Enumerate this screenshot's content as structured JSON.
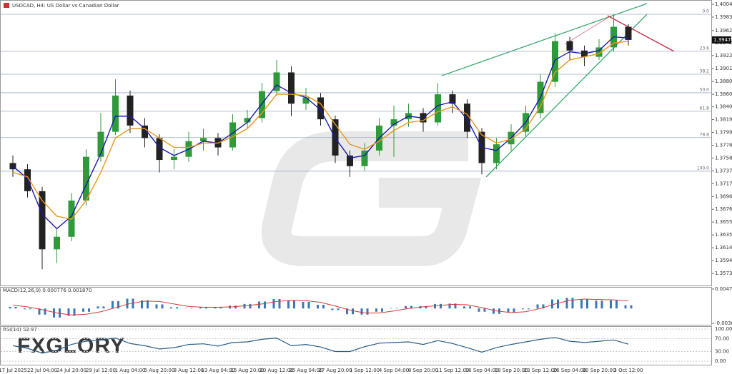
{
  "chart_data": {
    "type": "candlestick",
    "title": "USDCAD, H4:  US Dollar vs Canadian Dollar",
    "categories": [
      "17 Jul 2025",
      null,
      "22 Jul 04:00",
      null,
      "24 Jul 20:00",
      null,
      "29 Jul 12:00",
      null,
      "1 Aug 04:00",
      null,
      "5 Aug 20:00",
      null,
      "8 Aug 12:00",
      null,
      "13 Aug 04:00",
      null,
      "15 Aug 20:00",
      null,
      "20 Aug 12:00",
      null,
      "25 Aug 04:00",
      null,
      "27 Aug 20:00",
      null,
      "1 Sep 12:00",
      null,
      "4 Sep 04:00",
      null,
      "8 Sep 20:00",
      null,
      "11 Sep 12:00",
      null,
      "16 Sep 04:00",
      null,
      "18 Sep 20:00",
      null,
      "23 Sep 12:00",
      null,
      "26 Sep 04:00",
      null,
      "30 Sep 20:00",
      null,
      "3 Oct 12:00"
    ],
    "open": [
      1.375,
      1.374,
      1.3705,
      1.3612,
      1.3632,
      1.369,
      1.376,
      1.38,
      1.3858,
      1.381,
      1.379,
      1.3755,
      1.376,
      1.3785,
      1.379,
      1.3775,
      1.3815,
      1.3822,
      1.3865,
      1.3895,
      1.3845,
      1.3855,
      1.382,
      1.3762,
      1.3745,
      1.377,
      1.381,
      1.382,
      1.383,
      1.3815,
      1.386,
      1.3845,
      1.38,
      1.375,
      1.378,
      1.38,
      1.383,
      1.388,
      1.3945,
      1.393,
      1.392,
      1.3935,
      1.3968
    ],
    "high": [
      1.3762,
      1.3748,
      1.3712,
      1.3645,
      1.3702,
      1.3772,
      1.383,
      1.3884,
      1.3866,
      1.3822,
      1.3796,
      1.3772,
      1.38,
      1.3805,
      1.3798,
      1.3828,
      1.3835,
      1.3878,
      1.3915,
      1.3905,
      1.387,
      1.3862,
      1.3826,
      1.377,
      1.3782,
      1.3822,
      1.3842,
      1.3845,
      1.3838,
      1.3878,
      1.3866,
      1.3852,
      1.3806,
      1.379,
      1.3812,
      1.3842,
      1.3892,
      1.3958,
      1.3952,
      1.3938,
      1.3948,
      1.3988,
      1.3972
    ],
    "low": [
      1.3728,
      1.3695,
      1.358,
      1.359,
      1.3625,
      1.3682,
      1.3752,
      1.3795,
      1.3798,
      1.3775,
      1.3735,
      1.374,
      1.3752,
      1.377,
      1.3762,
      1.377,
      1.3805,
      1.3815,
      1.3858,
      1.3825,
      1.3835,
      1.381,
      1.375,
      1.3728,
      1.3738,
      1.3762,
      1.376,
      1.3808,
      1.38,
      1.381,
      1.383,
      1.379,
      1.3732,
      1.374,
      1.377,
      1.3792,
      1.3822,
      1.3872,
      1.3915,
      1.3905,
      1.3915,
      1.3928,
      1.3938
    ],
    "close": [
      1.374,
      1.3705,
      1.3612,
      1.3632,
      1.369,
      1.376,
      1.38,
      1.3858,
      1.381,
      1.379,
      1.3755,
      1.376,
      1.3785,
      1.379,
      1.3775,
      1.3815,
      1.3822,
      1.3865,
      1.3895,
      1.3845,
      1.3855,
      1.382,
      1.3762,
      1.3745,
      1.377,
      1.381,
      1.382,
      1.383,
      1.3815,
      1.386,
      1.3845,
      1.38,
      1.375,
      1.378,
      1.38,
      1.383,
      1.388,
      1.3945,
      1.393,
      1.392,
      1.3935,
      1.3968,
      1.3947
    ],
    "up_color": "#2f9a3a",
    "down_color": "#222222",
    "ylim": [
      1.35735,
      1.4004
    ],
    "yticks": [
      {
        "value": 1.4004,
        "label": "1.40040"
      },
      1.39835,
      {
        "value": 1.3962,
        "label": "1.39620"
      },
      1.39425,
      {
        "value": 1.3922,
        "label": "1.39220"
      },
      {
        "value": 1.3901,
        "label": "1.39010"
      },
      1.38805,
      {
        "value": 1.386,
        "label": "1.38600"
      },
      {
        "value": 1.384,
        "label": "1.38400"
      },
      1.38195,
      {
        "value": 1.3799,
        "label": "1.37990"
      },
      1.37785,
      {
        "value": 1.3758,
        "label": "1.37580"
      },
      1.37375,
      {
        "value": 1.3717,
        "label": "1.37170"
      },
      1.36965,
      {
        "value": 1.3676,
        "label": "1.36760"
      },
      1.36555,
      {
        "value": 1.3635,
        "label": "1.36350"
      },
      1.36145,
      {
        "value": 1.3594,
        "label": "1.35940"
      },
      1.35735
    ],
    "current_price": {
      "value": 1.3947,
      "label": "1.39470"
    },
    "ma": [
      {
        "color": "#1a1aa6",
        "values": [
          1.3745,
          1.3725,
          1.3668,
          1.3645,
          1.3665,
          1.3715,
          1.3765,
          1.3825,
          1.3825,
          1.3805,
          1.3775,
          1.3762,
          1.3772,
          1.3785,
          1.3782,
          1.3798,
          1.3815,
          1.3845,
          1.3875,
          1.3862,
          1.3855,
          1.3835,
          1.379,
          1.3758,
          1.3762,
          1.379,
          1.3812,
          1.3825,
          1.3822,
          1.3842,
          1.3848,
          1.382,
          1.3775,
          1.377,
          1.379,
          1.3815,
          1.3855,
          1.3915,
          1.3928,
          1.3925,
          1.393,
          1.3952,
          1.395
        ]
      },
      {
        "color": "#e8961e",
        "values": [
          1.3735,
          1.3728,
          1.369,
          1.3665,
          1.366,
          1.369,
          1.3735,
          1.379,
          1.3805,
          1.3805,
          1.379,
          1.3775,
          1.3775,
          1.3782,
          1.3782,
          1.3792,
          1.3805,
          1.383,
          1.386,
          1.386,
          1.3858,
          1.3845,
          1.3812,
          1.378,
          1.3772,
          1.3785,
          1.3802,
          1.3815,
          1.3818,
          1.3832,
          1.384,
          1.3828,
          1.3795,
          1.3782,
          1.3788,
          1.3805,
          1.384,
          1.3895,
          1.3915,
          1.392,
          1.3925,
          1.3942,
          1.3945
        ]
      }
    ],
    "fib": {
      "high": 1.3988,
      "low": 1.3737,
      "color": "#9aaac4",
      "levels": [
        {
          "value": 0,
          "label": "0.0"
        },
        23.6,
        38.2,
        {
          "value": 50,
          "label": "50.0"
        },
        61.8,
        78.6,
        {
          "value": 100,
          "label": "100.0"
        }
      ]
    },
    "macd": {
      "title": "MACD(12,26,9) 0.000776 0.001870",
      "ylim": [
        -0.003622,
        0.004736
      ],
      "yticks": [
        0.004736,
        -0.003622
      ],
      "histogram": {
        "color": "#3a78b8",
        "values": [
          0.0004,
          -0.0002,
          -0.0015,
          -0.0022,
          -0.0018,
          -0.0008,
          0.0005,
          0.0018,
          0.0024,
          0.002,
          0.001,
          0.0003,
          0.0001,
          0.0004,
          0.0003,
          0.0007,
          0.0011,
          0.0017,
          0.0023,
          0.002,
          0.0016,
          0.0009,
          -0.0004,
          -0.0014,
          -0.0015,
          -0.0008,
          0.0001,
          0.0006,
          0.0006,
          0.0011,
          0.0012,
          0.0005,
          -0.0008,
          -0.0013,
          -0.001,
          -0.0002,
          0.001,
          0.0022,
          0.0026,
          0.0023,
          0.0019,
          0.002,
          0.000776
        ]
      },
      "signal": {
        "color": "#d43a3a",
        "values": [
          0.0008,
          0.0004,
          -0.0003,
          -0.0011,
          -0.0016,
          -0.0014,
          -0.0008,
          0.0002,
          0.0012,
          0.0018,
          0.0017,
          0.0011,
          0.0005,
          0.0003,
          0.0003,
          0.0004,
          0.0007,
          0.0011,
          0.0017,
          0.002,
          0.0019,
          0.0015,
          0.0006,
          -0.0004,
          -0.0011,
          -0.0011,
          -0.0006,
          0.0,
          0.0004,
          0.0007,
          0.001,
          0.0009,
          0.0002,
          -0.0006,
          -0.001,
          -0.0008,
          0.0,
          0.0011,
          0.002,
          0.0023,
          0.0022,
          0.0021,
          0.00187
        ]
      }
    },
    "rsi": {
      "title": "RSI(14) 52.97",
      "ylim": [
        0,
        100
      ],
      "color": "#2a5c8a",
      "yticks": [
        {
          "value": 100,
          "label": "100.00"
        },
        {
          "value": 70,
          "label": "70.00"
        },
        {
          "value": 30,
          "label": "30.00"
        },
        {
          "value": 0,
          "label": "0.00"
        }
      ],
      "values": [
        48,
        40,
        25,
        34,
        52,
        62,
        66,
        72,
        55,
        48,
        38,
        42,
        52,
        54,
        47,
        58,
        60,
        68,
        72,
        48,
        52,
        44,
        30,
        30,
        45,
        56,
        58,
        60,
        52,
        64,
        55,
        42,
        28,
        42,
        52,
        60,
        68,
        74,
        62,
        58,
        62,
        66,
        52.97
      ]
    }
  },
  "brand": "FXGLORY"
}
